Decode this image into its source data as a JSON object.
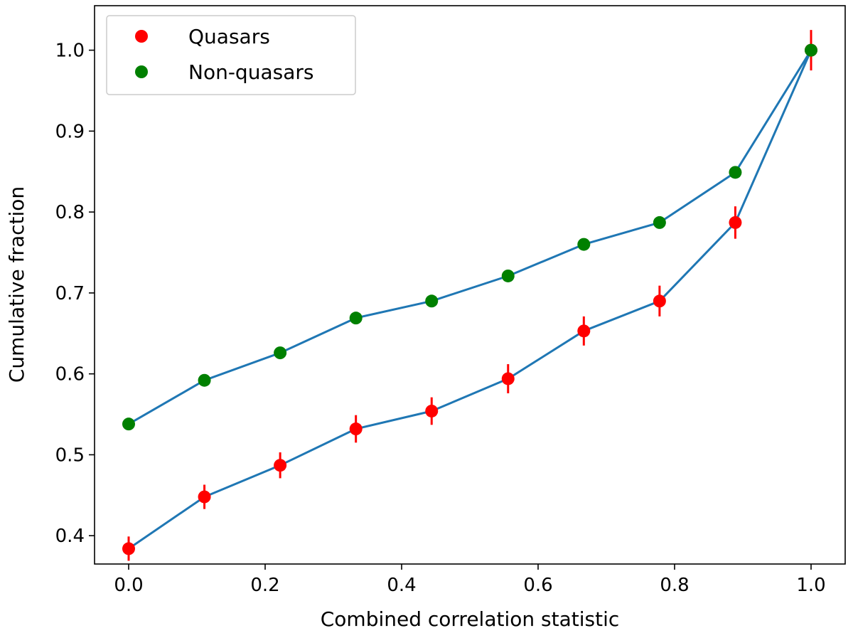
{
  "chart_data": {
    "type": "scatter",
    "title": "",
    "xlabel": "Combined correlation statistic",
    "ylabel": "Cumulative fraction",
    "xlim": [
      -0.05,
      1.05
    ],
    "ylim": [
      0.365,
      1.055
    ],
    "x_ticks": [
      0.0,
      0.2,
      0.4,
      0.6,
      0.8,
      1.0
    ],
    "x_tick_labels": [
      "0.0",
      "0.2",
      "0.4",
      "0.6",
      "0.8",
      "1.0"
    ],
    "y_ticks": [
      0.4,
      0.5,
      0.6,
      0.7,
      0.8,
      0.9,
      1.0
    ],
    "y_tick_labels": [
      "0.4",
      "0.5",
      "0.6",
      "0.7",
      "0.8",
      "0.9",
      "1.0"
    ],
    "grid": false,
    "legend_position": "top-left",
    "line_color": "#1f77b4",
    "series": [
      {
        "name": "Quasars",
        "color": "#ff0000",
        "x": [
          0.0,
          0.111,
          0.222,
          0.333,
          0.444,
          0.556,
          0.667,
          0.778,
          0.889,
          1.0
        ],
        "y": [
          0.384,
          0.448,
          0.487,
          0.532,
          0.554,
          0.594,
          0.653,
          0.69,
          0.787,
          1.0
        ],
        "yerr": [
          0.015,
          0.015,
          0.016,
          0.017,
          0.017,
          0.018,
          0.018,
          0.019,
          0.02,
          0.025
        ]
      },
      {
        "name": "Non-quasars",
        "color": "#008000",
        "x": [
          0.0,
          0.111,
          0.222,
          0.333,
          0.444,
          0.556,
          0.667,
          0.778,
          0.889,
          1.0
        ],
        "y": [
          0.538,
          0.592,
          0.626,
          0.669,
          0.69,
          0.721,
          0.76,
          0.787,
          0.849,
          1.0
        ],
        "yerr": [
          0.004,
          0.004,
          0.004,
          0.004,
          0.004,
          0.004,
          0.004,
          0.004,
          0.005,
          0.006
        ]
      }
    ]
  }
}
